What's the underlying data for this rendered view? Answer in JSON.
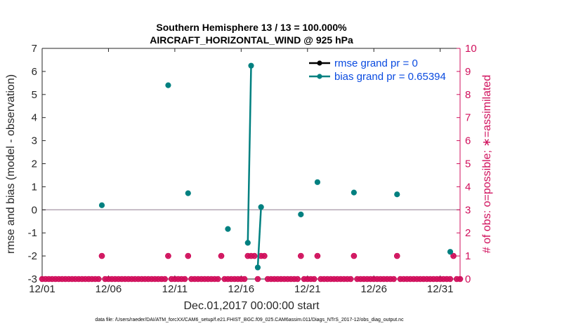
{
  "chart_data": {
    "type": "scatter",
    "title": "Southern Hemisphere 13 / 13 = 100.000%",
    "subtitle": "AIRCRAFT_HORIZONTAL_WIND @ 925 hPa",
    "xlabel": "Dec.01,2017 00:00:00 start",
    "ylabel": "rmse and bias (model - observation)",
    "y2label": "# of obs: o=possible; ∗=assimilated",
    "footer": "data file: /Users/raeder/DAI/ATM_forcXX/CAM6_setup/f.e21.FHIST_BGC.f09_025.CAM6assim.011/Diags_NTrS_2017-12/obs_diag_output.nc",
    "xlim": [
      0,
      31.5
    ],
    "ylim": [
      -3,
      7
    ],
    "y2lim": [
      0,
      10
    ],
    "xticks": [
      0,
      5,
      10,
      15,
      20,
      25,
      30
    ],
    "xtick_labels": [
      "12/01",
      "12/06",
      "12/11",
      "12/16",
      "12/21",
      "12/26",
      "12/31"
    ],
    "yticks": [
      -3,
      -2,
      -1,
      0,
      1,
      2,
      3,
      4,
      5,
      6,
      7
    ],
    "ytick_labels": [
      "-3",
      "-2",
      "-1",
      "0",
      "1",
      "2",
      "3",
      "4",
      "5",
      "6",
      "7"
    ],
    "y2ticks": [
      0,
      1,
      2,
      3,
      4,
      5,
      6,
      7,
      8,
      9,
      10
    ],
    "y2tick_labels": [
      "0",
      "1",
      "2",
      "3",
      "4",
      "5",
      "6",
      "7",
      "8",
      "9",
      "10"
    ],
    "zero_line": 0,
    "series": [
      {
        "name": "rmse grand pr = 0",
        "color": "#000000",
        "x": [],
        "y": []
      },
      {
        "name": "bias grand pr = 0.65394",
        "color": "#008080",
        "x": [
          4.5,
          9.5,
          11.0,
          14.0,
          15.5,
          15.75,
          16.25,
          16.5,
          19.5,
          20.75,
          23.5,
          26.75,
          32.0
        ],
        "y": [
          0.2,
          5.4,
          0.72,
          -0.83,
          -1.43,
          6.25,
          -2.5,
          0.12,
          -0.2,
          1.2,
          0.75,
          0.67,
          -1.82
        ],
        "segments": [
          [
            4,
            5
          ],
          [
            6,
            7
          ]
        ]
      }
    ],
    "obs_counts": {
      "color": "#d0105c",
      "x_possible": [
        0.0,
        0.25,
        0.5,
        0.75,
        1.0,
        1.25,
        1.5,
        1.75,
        2.0,
        2.25,
        2.5,
        2.75,
        3.0,
        3.25,
        3.5,
        3.75,
        4.0,
        4.25,
        4.5,
        4.75,
        5.0,
        5.25,
        5.5,
        5.75,
        6.0,
        6.25,
        6.5,
        6.75,
        7.0,
        7.25,
        7.5,
        7.75,
        8.0,
        8.25,
        8.5,
        8.75,
        9.0,
        9.25,
        9.5,
        9.75,
        10.0,
        10.25,
        10.5,
        10.75,
        11.0,
        11.25,
        11.5,
        11.75,
        12.0,
        12.25,
        12.5,
        12.75,
        13.0,
        13.25,
        13.5,
        13.75,
        14.0,
        14.25,
        14.5,
        14.75,
        15.0,
        15.25,
        15.5,
        15.75,
        16.0,
        16.25,
        16.5,
        16.75,
        17.0,
        17.25,
        17.5,
        17.75,
        18.0,
        18.25,
        18.5,
        18.75,
        19.0,
        19.25,
        19.5,
        19.75,
        20.0,
        20.25,
        20.5,
        20.75,
        21.0,
        21.25,
        21.5,
        21.75,
        22.0,
        22.25,
        22.5,
        22.75,
        23.0,
        23.25,
        23.5,
        23.75,
        24.0,
        24.25,
        24.5,
        24.75,
        25.0,
        25.25,
        25.5,
        25.75,
        26.0,
        26.25,
        26.5,
        26.75,
        27.0,
        27.25,
        27.5,
        27.75,
        28.0,
        28.25,
        28.5,
        28.75,
        29.0,
        29.25,
        29.5,
        29.75,
        30.0,
        30.25,
        30.5,
        30.75,
        31.0,
        31.25,
        31.5
      ],
      "y_possible": [
        0,
        0,
        0,
        0,
        0,
        0,
        0,
        0,
        0,
        0,
        0,
        0,
        0,
        0,
        0,
        0,
        0,
        0,
        1,
        0,
        0,
        0,
        0,
        0,
        0,
        0,
        0,
        0,
        0,
        0,
        0,
        0,
        0,
        0,
        0,
        0,
        0,
        0,
        1,
        0,
        0,
        0,
        0,
        0,
        1,
        0,
        0,
        0,
        0,
        0,
        0,
        0,
        0,
        0,
        1,
        0,
        0,
        0,
        0,
        0,
        0,
        0,
        1,
        1,
        1,
        0,
        1,
        1,
        0,
        0,
        0,
        0,
        0,
        0,
        0,
        0,
        0,
        0,
        1,
        0,
        0,
        0,
        0,
        1,
        0,
        0,
        0,
        0,
        0,
        0,
        0,
        0,
        0,
        0,
        1,
        0,
        0,
        0,
        0,
        0,
        0,
        0,
        0,
        0,
        0,
        0,
        0,
        1,
        0,
        0,
        0,
        0,
        0,
        0,
        0,
        0,
        0,
        0,
        0,
        0,
        0,
        0,
        0,
        0,
        1,
        0,
        0
      ]
    }
  }
}
